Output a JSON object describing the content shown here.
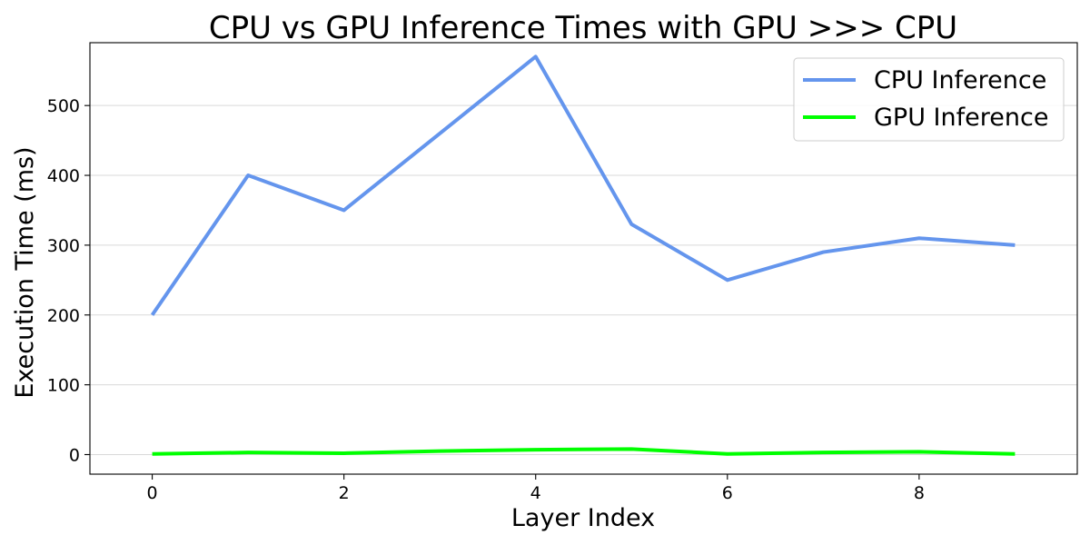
{
  "chart_data": {
    "type": "line",
    "title": "CPU vs GPU Inference Times with GPU >>> CPU",
    "xlabel": "Layer Index",
    "ylabel": "Execution Time (ms)",
    "x": [
      0,
      1,
      2,
      3,
      4,
      5,
      6,
      7,
      8,
      9
    ],
    "xlim": [
      -0.65,
      9.65
    ],
    "ylim": [
      -28,
      590
    ],
    "xticks": [
      0,
      2,
      4,
      6,
      8
    ],
    "xtick_labels": [
      "0",
      "2",
      "4",
      "6",
      "8"
    ],
    "yticks": [
      0,
      100,
      200,
      300,
      400,
      500
    ],
    "ytick_labels": [
      "0",
      "100",
      "200",
      "300",
      "400",
      "500"
    ],
    "grid": "horizontal",
    "legend_position": "top-right",
    "series": [
      {
        "name": "CPU Inference",
        "color": "#6495ED",
        "values": [
          200,
          400,
          350,
          460,
          570,
          330,
          250,
          290,
          310,
          300
        ]
      },
      {
        "name": "GPU Inference",
        "color": "#00FF00",
        "values": [
          1,
          3,
          2,
          5,
          7,
          8,
          1,
          3,
          4,
          1
        ]
      }
    ]
  }
}
